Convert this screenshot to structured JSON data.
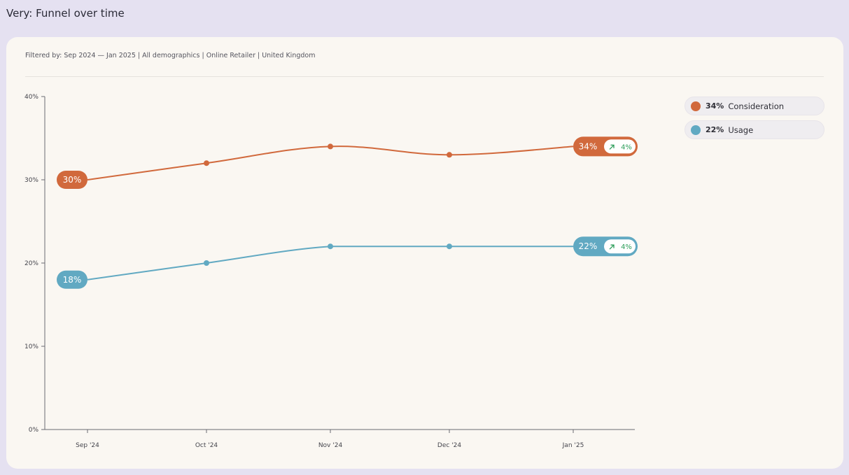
{
  "header": {
    "title": "Very: Funnel over time"
  },
  "filters": {
    "text": "Filtered by: Sep 2024 — Jan 2025  |  All demographics  |  Online Retailer  |  United Kingdom"
  },
  "legend": [
    {
      "value_label": "34%",
      "label": "Consideration",
      "color": "#d1693c"
    },
    {
      "value_label": "22%",
      "label": "Usage",
      "color": "#61a9c2"
    }
  ],
  "chart_data": {
    "type": "line",
    "title": "",
    "xlabel": "",
    "ylabel": "",
    "categories": [
      "Sep '24",
      "Oct '24",
      "Nov '24",
      "Dec '24",
      "Jan '25"
    ],
    "ylim": [
      0,
      40
    ],
    "yticks": [
      "0%",
      "10%",
      "20%",
      "30%",
      "40%"
    ],
    "grid": false,
    "legend_position": "top-right",
    "series": [
      {
        "name": "Consideration",
        "color": "#d1693c",
        "values": [
          30,
          32,
          34,
          33,
          34
        ],
        "start_label": "30%",
        "end_label": "34%",
        "change_label": "4%"
      },
      {
        "name": "Usage",
        "color": "#61a9c2",
        "values": [
          18,
          20,
          22,
          22,
          22
        ],
        "start_label": "18%",
        "end_label": "22%",
        "change_label": "4%"
      }
    ],
    "change_color": "#2e9e5b",
    "change_icon": "arrow-up-right-icon"
  }
}
